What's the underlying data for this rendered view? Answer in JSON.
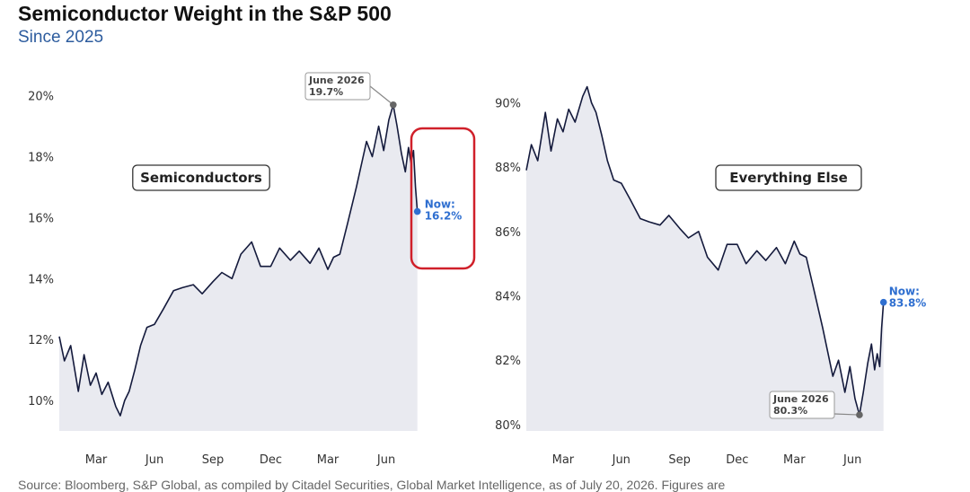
{
  "header": {
    "title": "Semiconductor Weight in the S&P 500",
    "subtitle": "Since 2025"
  },
  "source_text": "Source: Bloomberg, S&P Global, as compiled by Citadel Securities, Global Market Intelligence, as of July 20, 2026. Figures are",
  "colors": {
    "line": "#141a3c",
    "fill": "#e9eaf0",
    "now": "#2f6fd0",
    "peak_marker": "#666666",
    "highlight_box": "#d0202a"
  },
  "chart_data": [
    {
      "type": "area",
      "label": "Semiconductors",
      "ylim": [
        9.0,
        20.4
      ],
      "yticks": [
        10,
        12,
        14,
        16,
        18,
        20
      ],
      "ytick_labels": [
        "10%",
        "12%",
        "14%",
        "16%",
        "18%",
        "20%"
      ],
      "xlim": [
        "2025-01-02",
        "2026-08-05"
      ],
      "xticks": [
        {
          "date": "2025-03-01",
          "label": "Mar"
        },
        {
          "date": "2025-06-01",
          "label": "Jun"
        },
        {
          "date": "2025-09-01",
          "label": "Sep"
        },
        {
          "date": "2025-12-01",
          "label": "Dec"
        },
        {
          "date": "2026-03-01",
          "label": "Mar"
        },
        {
          "date": "2026-06-01",
          "label": "Jun"
        }
      ],
      "x": [
        "2025-01-02",
        "2025-01-10",
        "2025-01-20",
        "2025-02-01",
        "2025-02-10",
        "2025-02-20",
        "2025-03-01",
        "2025-03-10",
        "2025-03-20",
        "2025-04-01",
        "2025-04-08",
        "2025-04-15",
        "2025-04-22",
        "2025-05-01",
        "2025-05-10",
        "2025-05-20",
        "2025-06-01",
        "2025-06-15",
        "2025-07-01",
        "2025-07-15",
        "2025-08-01",
        "2025-08-15",
        "2025-09-01",
        "2025-09-15",
        "2025-10-01",
        "2025-10-15",
        "2025-11-01",
        "2025-11-15",
        "2025-12-01",
        "2025-12-15",
        "2026-01-01",
        "2026-01-15",
        "2026-02-01",
        "2026-02-15",
        "2026-03-01",
        "2026-03-10",
        "2026-03-20",
        "2026-04-01",
        "2026-04-15",
        "2026-05-01",
        "2026-05-10",
        "2026-05-20",
        "2026-05-28",
        "2026-06-05",
        "2026-06-12",
        "2026-06-18",
        "2026-06-25",
        "2026-07-01",
        "2026-07-06",
        "2026-07-10",
        "2026-07-14",
        "2026-07-17",
        "2026-07-20"
      ],
      "values": [
        12.1,
        11.3,
        11.8,
        10.3,
        11.5,
        10.5,
        10.9,
        10.2,
        10.6,
        9.8,
        9.5,
        10.0,
        10.3,
        11.0,
        11.8,
        12.4,
        12.5,
        13.0,
        13.6,
        13.7,
        13.8,
        13.5,
        13.9,
        14.2,
        14.0,
        14.8,
        15.2,
        14.4,
        14.4,
        15.0,
        14.6,
        14.9,
        14.5,
        15.0,
        14.3,
        14.7,
        14.8,
        15.8,
        17.0,
        18.5,
        18.0,
        19.0,
        18.2,
        19.2,
        19.7,
        19.0,
        18.1,
        17.5,
        18.3,
        17.8,
        18.2,
        17.0,
        16.2
      ],
      "annotations": [
        {
          "label": "June 2026",
          "value_label": "19.7%",
          "date": "2026-06-12",
          "value": 19.7
        },
        {
          "label": "Now:",
          "value_label": "16.2%",
          "date": "2026-07-20",
          "value": 16.2
        }
      ]
    },
    {
      "type": "area",
      "label": "Everything Else",
      "ylim": [
        79.8,
        90.6
      ],
      "yticks": [
        80,
        82,
        84,
        86,
        88,
        90
      ],
      "ytick_labels": [
        "80%",
        "82%",
        "84%",
        "86%",
        "88%",
        "90%"
      ],
      "xlim": [
        "2025-01-02",
        "2026-08-05"
      ],
      "xticks": [
        {
          "date": "2025-03-01",
          "label": "Mar"
        },
        {
          "date": "2025-06-01",
          "label": "Jun"
        },
        {
          "date": "2025-09-01",
          "label": "Sep"
        },
        {
          "date": "2025-12-01",
          "label": "Dec"
        },
        {
          "date": "2026-03-01",
          "label": "Mar"
        },
        {
          "date": "2026-06-01",
          "label": "Jun"
        }
      ],
      "x": [
        "2025-01-02",
        "2025-01-10",
        "2025-01-20",
        "2025-02-01",
        "2025-02-10",
        "2025-02-20",
        "2025-03-01",
        "2025-03-10",
        "2025-03-20",
        "2025-04-01",
        "2025-04-08",
        "2025-04-15",
        "2025-04-22",
        "2025-05-01",
        "2025-05-10",
        "2025-05-20",
        "2025-06-01",
        "2025-06-15",
        "2025-07-01",
        "2025-07-15",
        "2025-08-01",
        "2025-08-15",
        "2025-09-01",
        "2025-09-15",
        "2025-10-01",
        "2025-10-15",
        "2025-11-01",
        "2025-11-15",
        "2025-12-01",
        "2025-12-15",
        "2026-01-01",
        "2026-01-15",
        "2026-02-01",
        "2026-02-15",
        "2026-03-01",
        "2026-03-10",
        "2026-03-20",
        "2026-04-01",
        "2026-04-15",
        "2026-05-01",
        "2026-05-10",
        "2026-05-20",
        "2026-05-28",
        "2026-06-05",
        "2026-06-12",
        "2026-06-18",
        "2026-06-25",
        "2026-07-01",
        "2026-07-06",
        "2026-07-10",
        "2026-07-14",
        "2026-07-17",
        "2026-07-20"
      ],
      "values": [
        87.9,
        88.7,
        88.2,
        89.7,
        88.5,
        89.5,
        89.1,
        89.8,
        89.4,
        90.2,
        90.5,
        90.0,
        89.7,
        89.0,
        88.2,
        87.6,
        87.5,
        87.0,
        86.4,
        86.3,
        86.2,
        86.5,
        86.1,
        85.8,
        86.0,
        85.2,
        84.8,
        85.6,
        85.6,
        85.0,
        85.4,
        85.1,
        85.5,
        85.0,
        85.7,
        85.3,
        85.2,
        84.2,
        83.0,
        81.5,
        82.0,
        81.0,
        81.8,
        80.8,
        80.3,
        81.0,
        81.9,
        82.5,
        81.7,
        82.2,
        81.8,
        83.0,
        83.8
      ],
      "annotations": [
        {
          "label": "June 2026",
          "value_label": "80.3%",
          "date": "2026-06-12",
          "value": 80.3
        },
        {
          "label": "Now:",
          "value_label": "83.8%",
          "date": "2026-07-20",
          "value": 83.8
        }
      ]
    }
  ]
}
